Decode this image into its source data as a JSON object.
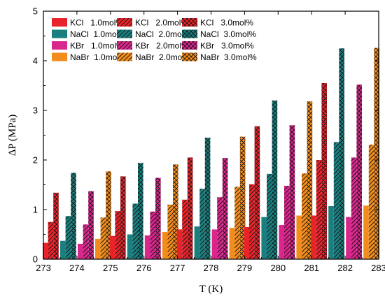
{
  "chart_data": {
    "type": "bar",
    "xlabel": "T (K)",
    "ylabel": "ΔP (MPa)",
    "xlim": [
      273,
      283
    ],
    "ylim": [
      0,
      5
    ],
    "xticks": [
      "273",
      "274",
      "275",
      "276",
      "277",
      "278",
      "279",
      "280",
      "281",
      "282",
      "283"
    ],
    "yticks": [
      "0",
      "1",
      "2",
      "3",
      "4",
      "5"
    ],
    "groups": [
      {
        "x": 274,
        "salts": [
          {
            "salt": "KCl",
            "values": [
              0.33,
              0.75,
              1.34
            ]
          },
          {
            "salt": "NaCl",
            "values": [
              0.37,
              0.87,
              1.74
            ]
          },
          {
            "salt": "KBr",
            "values": [
              0.31,
              0.7,
              1.37
            ]
          },
          {
            "salt": "NaBr",
            "values": [
              0.41,
              0.84,
              1.77
            ]
          }
        ]
      },
      {
        "x": 276,
        "salts": [
          {
            "salt": "KCl",
            "values": [
              0.47,
              0.97,
              1.67
            ]
          },
          {
            "salt": "NaCl",
            "values": [
              0.5,
              1.12,
              1.94
            ]
          },
          {
            "salt": "KBr",
            "values": [
              0.48,
              0.96,
              1.64
            ]
          },
          {
            "salt": "NaBr",
            "values": [
              0.55,
              1.1,
              1.91
            ]
          }
        ]
      },
      {
        "x": 278,
        "salts": [
          {
            "salt": "KCl",
            "values": [
              0.6,
              1.2,
              2.05
            ]
          },
          {
            "salt": "NaCl",
            "values": [
              0.66,
              1.42,
              2.45
            ]
          },
          {
            "salt": "KBr",
            "values": [
              0.6,
              1.25,
              2.04
            ]
          },
          {
            "salt": "NaBr",
            "values": [
              0.63,
              1.46,
              2.47
            ]
          }
        ]
      },
      {
        "x": 280,
        "salts": [
          {
            "salt": "KCl",
            "values": [
              0.65,
              1.51,
              2.68
            ]
          },
          {
            "salt": "NaCl",
            "values": [
              0.85,
              1.72,
              3.2
            ]
          },
          {
            "salt": "KBr",
            "values": [
              0.69,
              1.48,
              2.7
            ]
          },
          {
            "salt": "NaBr",
            "values": [
              0.88,
              1.73,
              3.18
            ]
          }
        ]
      },
      {
        "x": 282,
        "salts": [
          {
            "salt": "KCl",
            "values": [
              0.88,
              2.0,
              3.55
            ]
          },
          {
            "salt": "NaCl",
            "values": [
              1.07,
              2.36,
              4.25
            ]
          },
          {
            "salt": "KBr",
            "values": [
              0.85,
              2.05,
              3.52
            ]
          },
          {
            "salt": "NaBr",
            "values": [
              1.08,
              2.31,
              4.26
            ]
          }
        ]
      }
    ],
    "legend": [
      {
        "label": "KCl   1.0mol%",
        "salt": "KCl",
        "level": 0
      },
      {
        "label": "KCl   2.0mol%",
        "salt": "KCl",
        "level": 1
      },
      {
        "label": "KCl   3.0mol%",
        "salt": "KCl",
        "level": 2
      },
      {
        "label": "NaCl  1.0mol%",
        "salt": "NaCl",
        "level": 0
      },
      {
        "label": "NaCl  2.0mol%",
        "salt": "NaCl",
        "level": 1
      },
      {
        "label": "NaCl  3.0mol%",
        "salt": "NaCl",
        "level": 2
      },
      {
        "label": "KBr   1.0mol%",
        "salt": "KBr",
        "level": 0
      },
      {
        "label": "KBr   2.0mol%",
        "salt": "KBr",
        "level": 1
      },
      {
        "label": "KBr   3.0mol%",
        "salt": "KBr",
        "level": 2
      },
      {
        "label": "NaBr  1.0mol%",
        "salt": "NaBr",
        "level": 0
      },
      {
        "label": "NaBr  2.0mol%",
        "salt": "NaBr",
        "level": 1
      },
      {
        "label": "NaBr  3.0mol%",
        "salt": "NaBr",
        "level": 2
      }
    ],
    "colors": {
      "KCl": "#e8232a",
      "NaCl": "#1b7f7f",
      "KBr": "#d9258c",
      "NaBr": "#f28c1c"
    },
    "patterns": [
      "solid",
      "hatch-diagonal",
      "hatch-cross"
    ],
    "legend_position": "top-left",
    "grid": false
  }
}
